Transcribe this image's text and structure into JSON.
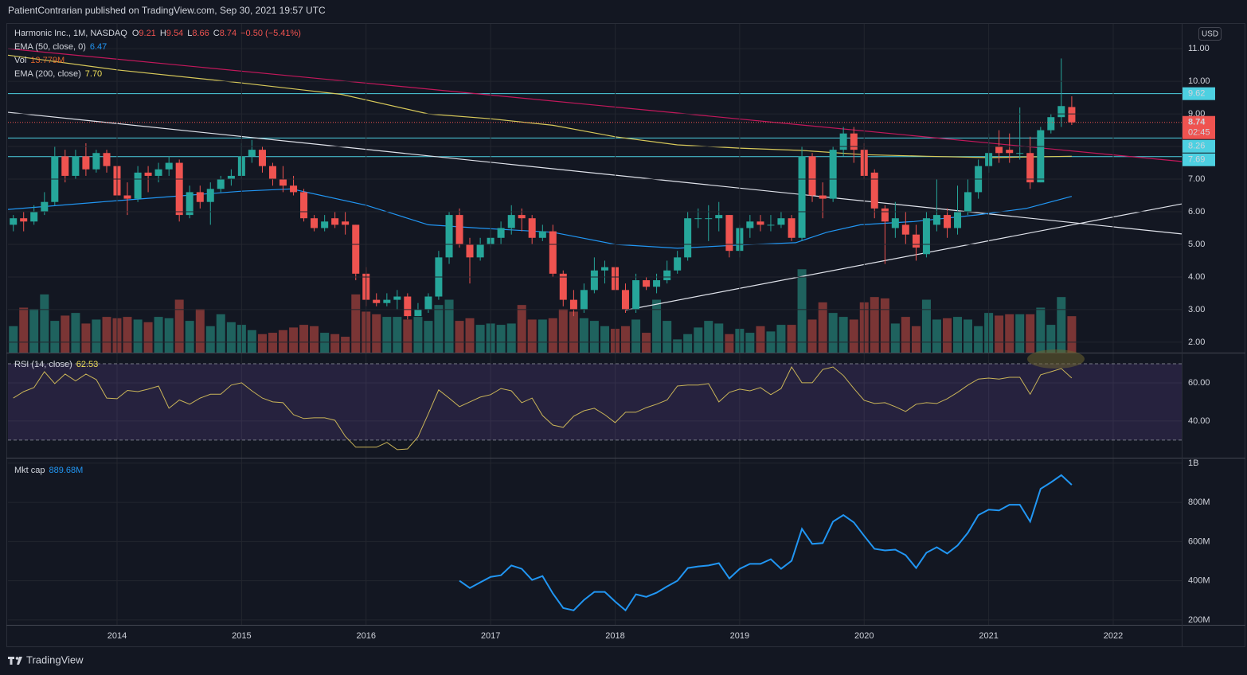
{
  "header": {
    "publisher": "PatientContrarian published on TradingView.com, Sep 30, 2021 19:57 UTC"
  },
  "footer": {
    "brand": "TradingView"
  },
  "chart_data": {
    "type": "candlestick",
    "title": "Harmonic Inc., 1M, NASDAQ",
    "legend_ohlc": {
      "o": "O",
      "o_value": "9.21",
      "h": "H",
      "h_value": "9.54",
      "l": "L",
      "l_value": "8.66",
      "c": "C",
      "c_value": "8.74",
      "change": "−0.50 (−5.41%)"
    },
    "currency": "USD",
    "countdown": "02:45",
    "up_color": "#26a69a",
    "down_color": "#ef5350",
    "x": [
      2013.167,
      2013.25,
      2013.333,
      2013.417,
      2013.5,
      2013.583,
      2013.667,
      2013.75,
      2013.833,
      2013.917,
      2014,
      2014.083,
      2014.167,
      2014.25,
      2014.333,
      2014.417,
      2014.5,
      2014.583,
      2014.667,
      2014.75,
      2014.833,
      2014.917,
      2015,
      2015.083,
      2015.167,
      2015.25,
      2015.333,
      2015.417,
      2015.5,
      2015.583,
      2015.667,
      2015.75,
      2015.833,
      2015.917,
      2016,
      2016.083,
      2016.167,
      2016.25,
      2016.333,
      2016.417,
      2016.5,
      2016.583,
      2016.667,
      2016.75,
      2016.833,
      2016.917,
      2017,
      2017.083,
      2017.167,
      2017.25,
      2017.333,
      2017.417,
      2017.5,
      2017.583,
      2017.667,
      2017.75,
      2017.833,
      2017.917,
      2018,
      2018.083,
      2018.167,
      2018.25,
      2018.333,
      2018.417,
      2018.5,
      2018.583,
      2018.667,
      2018.75,
      2018.833,
      2018.917,
      2019,
      2019.083,
      2019.167,
      2019.25,
      2019.333,
      2019.417,
      2019.5,
      2019.583,
      2019.667,
      2019.75,
      2019.833,
      2019.917,
      2020,
      2020.083,
      2020.167,
      2020.25,
      2020.333,
      2020.417,
      2020.5,
      2020.583,
      2020.667,
      2020.75,
      2020.833,
      2020.917,
      2021,
      2021.083,
      2021.167,
      2021.25,
      2021.333,
      2021.417,
      2021.5,
      2021.583,
      2021.667
    ],
    "open": [
      5.6,
      5.8,
      5.7,
      6.0,
      6.3,
      7.7,
      7.1,
      7.7,
      7.3,
      7.8,
      7.4,
      6.5,
      6.4,
      7.2,
      7.1,
      7.3,
      7.5,
      5.9,
      6.6,
      6.3,
      6.7,
      7.0,
      7.1,
      7.7,
      7.9,
      7.4,
      7.0,
      6.8,
      6.6,
      5.8,
      5.5,
      5.8,
      5.7,
      5.6,
      4.1,
      3.3,
      3.2,
      3.3,
      3.4,
      2.8,
      3.0,
      3.4,
      4.6,
      5.9,
      5.0,
      4.6,
      5.0,
      5.2,
      5.5,
      5.9,
      5.8,
      5.2,
      5.4,
      4.1,
      3.3,
      3.0,
      3.6,
      4.2,
      4.3,
      3.6,
      3.0,
      3.9,
      3.7,
      3.9,
      4.2,
      4.6,
      5.8,
      5.8,
      5.8,
      5.9,
      4.8,
      5.5,
      5.7,
      5.6,
      5.6,
      5.8,
      5.2,
      7.7,
      6.5,
      6.4,
      7.9,
      8.4,
      7.9,
      7.2,
      6.1,
      5.5,
      5.6,
      5.3,
      4.7,
      5.6,
      5.9,
      5.5,
      6.0,
      6.6,
      7.4,
      8.0,
      7.9,
      7.8,
      7.8,
      6.9,
      8.5,
      8.9,
      9.21
    ],
    "high": [
      5.9,
      6.0,
      6.2,
      6.6,
      8.0,
      7.9,
      7.9,
      8.1,
      7.9,
      7.9,
      7.6,
      6.9,
      7.4,
      7.4,
      7.5,
      7.7,
      7.6,
      6.8,
      6.8,
      6.9,
      7.1,
      7.3,
      8.1,
      8.2,
      8.0,
      7.5,
      7.4,
      7.1,
      6.7,
      5.9,
      5.9,
      6.0,
      6.0,
      5.6,
      4.3,
      3.5,
      3.5,
      3.6,
      3.5,
      3.2,
      3.5,
      4.8,
      6.0,
      6.1,
      5.2,
      5.2,
      5.5,
      5.7,
      6.2,
      6.1,
      5.9,
      5.6,
      5.6,
      4.2,
      3.6,
      3.8,
      4.6,
      4.5,
      4.5,
      3.8,
      4.1,
      4.0,
      4.1,
      4.5,
      4.8,
      6.0,
      6.1,
      6.2,
      6.3,
      5.9,
      5.6,
      5.9,
      5.9,
      5.9,
      6.0,
      5.9,
      8.0,
      7.8,
      6.9,
      8.0,
      8.6,
      8.6,
      8.1,
      7.3,
      6.2,
      6.3,
      6.0,
      5.6,
      6.0,
      7.0,
      6.1,
      6.8,
      7.0,
      7.6,
      8.4,
      8.5,
      8.4,
      9.2,
      8.3,
      8.6,
      9.0,
      10.7,
      9.54
    ],
    "low": [
      5.4,
      5.4,
      5.6,
      5.9,
      6.2,
      6.9,
      7.0,
      7.1,
      7.2,
      7.2,
      6.3,
      5.9,
      6.3,
      6.6,
      6.9,
      7.1,
      5.7,
      5.8,
      6.1,
      5.6,
      6.6,
      6.8,
      7.0,
      7.5,
      7.2,
      6.8,
      6.6,
      6.5,
      5.7,
      5.4,
      5.4,
      5.5,
      5.3,
      3.9,
      3.1,
      3.1,
      3.1,
      3.0,
      2.7,
      2.8,
      2.9,
      3.3,
      4.4,
      4.9,
      3.8,
      4.5,
      4.9,
      5.0,
      5.3,
      5.4,
      5.0,
      5.1,
      4.0,
      3.1,
      2.8,
      2.9,
      3.5,
      3.8,
      3.4,
      2.9,
      2.9,
      3.6,
      3.5,
      3.8,
      4.1,
      4.5,
      5.5,
      5.1,
      5.4,
      4.6,
      4.6,
      5.2,
      5.4,
      5.4,
      5.5,
      5.1,
      5.1,
      6.3,
      5.8,
      6.3,
      7.7,
      7.5,
      7.0,
      5.8,
      4.4,
      5.2,
      5.0,
      4.5,
      4.6,
      5.4,
      5.2,
      5.3,
      5.9,
      6.4,
      7.2,
      7.5,
      7.5,
      7.6,
      6.7,
      6.9,
      8.4,
      8.6,
      8.66
    ],
    "close": [
      5.8,
      5.7,
      6.0,
      6.3,
      7.7,
      7.1,
      7.7,
      7.3,
      7.8,
      7.4,
      6.5,
      6.4,
      7.2,
      7.1,
      7.3,
      7.5,
      5.9,
      6.6,
      6.3,
      6.7,
      7.0,
      7.1,
      7.7,
      7.9,
      7.4,
      7.0,
      6.8,
      6.6,
      5.8,
      5.5,
      5.7,
      5.6,
      5.6,
      4.1,
      3.3,
      3.2,
      3.3,
      3.4,
      2.8,
      3.0,
      3.4,
      4.6,
      5.9,
      5.0,
      4.6,
      5.0,
      5.2,
      5.5,
      5.9,
      5.8,
      5.2,
      5.4,
      4.1,
      3.3,
      3.0,
      3.6,
      4.2,
      4.3,
      3.6,
      3.0,
      3.9,
      3.7,
      3.9,
      4.2,
      4.6,
      5.8,
      5.8,
      5.8,
      5.9,
      4.8,
      5.5,
      5.7,
      5.6,
      5.6,
      5.8,
      5.2,
      7.7,
      6.5,
      6.4,
      7.9,
      8.4,
      7.9,
      7.1,
      6.1,
      5.7,
      5.8,
      5.3,
      4.9,
      5.8,
      5.9,
      5.5,
      6.0,
      6.6,
      7.4,
      7.8,
      7.8,
      7.8,
      7.8,
      6.9,
      8.5,
      8.9,
      9.24,
      8.74
    ],
    "xlim": [
      2013.124,
      2022.55
    ],
    "xticks": [
      2014,
      2015,
      2016,
      2017,
      2018,
      2019,
      2020,
      2021,
      2022
    ],
    "ylim": [
      1.68,
      11.76
    ],
    "yticks": [
      {
        "value": 2,
        "label": "2.00"
      },
      {
        "value": 3,
        "label": "3.00"
      },
      {
        "value": 4,
        "label": "4.00"
      },
      {
        "value": 5,
        "label": "5.00"
      },
      {
        "value": 6,
        "label": "6.00"
      },
      {
        "value": 7,
        "label": "7.00"
      },
      {
        "value": 8,
        "label": "8.00"
      },
      {
        "value": 9,
        "label": "9.00"
      },
      {
        "value": 10,
        "label": "10.00"
      },
      {
        "value": 11,
        "label": "11.00"
      }
    ],
    "grid": true,
    "hlines": [
      9.62,
      8.26,
      7.69
    ],
    "hline_color": "#4dd0e1",
    "volume": {
      "name": "Vol",
      "up_color": "#1f625e",
      "down_color": "#7a3535",
      "ylim": [
        0,
        40
      ],
      "last_label": "13.779M",
      "values": [
        10,
        17,
        16.5,
        22,
        12,
        14,
        15,
        11,
        12.5,
        13.5,
        13,
        13.5,
        12.5,
        11.5,
        13.5,
        13,
        20,
        12,
        16.5,
        10,
        14.5,
        11.5,
        10.5,
        8.5,
        7,
        7.5,
        8.5,
        9.5,
        10.5,
        10,
        7.5,
        7,
        6,
        22,
        15.5,
        14.5,
        13.5,
        13.5,
        12.5,
        13.5,
        12,
        18,
        20,
        12,
        13,
        10.5,
        11,
        10.5,
        11,
        18,
        12.5,
        12.5,
        13,
        16.5,
        15.5,
        13,
        12,
        10,
        9,
        10,
        12.5,
        7.5,
        20,
        12,
        5,
        7,
        9.5,
        12,
        11,
        7,
        9,
        7.5,
        10,
        8,
        10.5,
        10.5,
        31.5,
        12.5,
        19,
        15,
        13.5,
        12.5,
        19,
        21,
        20.5,
        11,
        13.5,
        10,
        20,
        12.5,
        13,
        13.5,
        12.5,
        10,
        15,
        14,
        14.5,
        14.5,
        14.5,
        17,
        10.5,
        21,
        13.779
      ]
    },
    "series": [
      {
        "name": "EMA (50, close, 0)",
        "color": "#2196f3",
        "last_label": "6.47",
        "x": [
          2013.124,
          2014,
          2015,
          2015.4,
          2016,
          2016.25,
          2016.5,
          2016.9,
          2017.5,
          2018,
          2018.5,
          2019,
          2019.45,
          2019.7,
          2019.97,
          2020.4,
          2020.9,
          2021.3,
          2021.667
        ],
        "values": [
          6.07,
          6.34,
          6.63,
          6.7,
          6.2,
          5.9,
          5.6,
          5.5,
          5.37,
          5.0,
          4.88,
          4.98,
          5.05,
          5.37,
          5.6,
          5.7,
          5.9,
          6.1,
          6.47
        ]
      },
      {
        "name": "EMA (200, close)",
        "color": "#d8c95a",
        "last_label": "7.70",
        "x": [
          2013.124,
          2014,
          2015,
          2015.8,
          2016.5,
          2017,
          2017.5,
          2018,
          2018.5,
          2019,
          2019.5,
          2020,
          2020.5,
          2021,
          2021.667
        ],
        "values": [
          10.8,
          10.35,
          9.95,
          9.6,
          9.0,
          8.85,
          8.65,
          8.3,
          8.05,
          7.95,
          7.88,
          7.75,
          7.7,
          7.66,
          7.7
        ]
      }
    ],
    "trendlines": [
      {
        "color": "#c2185b",
        "x": [
          2013.124,
          2022.55
        ],
        "y": [
          11.0,
          7.54
        ]
      },
      {
        "color": "#e0e3eb",
        "x": [
          2013.124,
          2022.55
        ],
        "y": [
          9.05,
          5.32
        ]
      },
      {
        "color": "#e0e3eb",
        "x": [
          2018.08,
          2022.55
        ],
        "y": [
          2.98,
          6.24
        ]
      }
    ],
    "rsi": {
      "name": "RSI (14, close)",
      "color": "#c9b458",
      "last_label": "62.53",
      "ylim": [
        20.8,
        75.4
      ],
      "yticks": [
        {
          "value": 60,
          "label": "60.00"
        },
        {
          "value": 40,
          "label": "40.00"
        }
      ],
      "bands": [
        70,
        30
      ],
      "values": [
        52,
        55.4,
        57.5,
        65.8,
        59.6,
        64.6,
        61,
        64.6,
        61.7,
        52,
        51.7,
        56,
        55.4,
        56.7,
        58.3,
        46.7,
        51,
        48.8,
        52,
        54,
        54,
        58.8,
        60,
        55.8,
        52,
        50,
        49.6,
        43.3,
        41.3,
        41.7,
        41.7,
        40.4,
        32,
        26.3,
        26.3,
        26.3,
        28.8,
        25,
        25.4,
        31.7,
        43.8,
        56.3,
        52,
        47.5,
        50,
        52.5,
        53.8,
        57,
        55.8,
        49.6,
        52,
        42.9,
        37.9,
        36.7,
        42.5,
        45.4,
        46.7,
        43.3,
        39.2,
        44.6,
        44.6,
        47,
        48.8,
        51,
        58.3,
        58.8,
        58.8,
        59.6,
        50,
        55,
        56.7,
        55.8,
        57.5,
        53.8,
        57,
        68.3,
        60,
        60,
        67,
        68.3,
        63.8,
        57,
        50.8,
        49.2,
        49.6,
        47.5,
        45,
        48.8,
        49.6,
        49.2,
        51.7,
        55,
        58.8,
        62,
        62.5,
        62,
        62.9,
        62.9,
        54,
        64.2,
        65.8,
        67.5,
        62.53
      ]
    },
    "mcap": {
      "name": "Mkt cap",
      "color": "#2196f3",
      "last_label": "889.68M",
      "ylim": [
        175,
        1024
      ],
      "yticks": [
        {
          "value": 1000,
          "label": "1B"
        },
        {
          "value": 800,
          "label": "800M"
        },
        {
          "value": 600,
          "label": "600M"
        },
        {
          "value": 400,
          "label": "400M"
        },
        {
          "value": 200,
          "label": "200M"
        }
      ],
      "values": [
        null,
        null,
        null,
        null,
        null,
        null,
        null,
        null,
        null,
        null,
        null,
        null,
        null,
        null,
        null,
        null,
        null,
        null,
        null,
        null,
        null,
        null,
        null,
        null,
        null,
        null,
        null,
        null,
        null,
        null,
        null,
        null,
        null,
        null,
        null,
        null,
        null,
        null,
        null,
        null,
        null,
        null,
        null,
        400,
        363,
        392,
        420,
        428,
        478,
        461,
        404,
        424,
        335,
        261,
        249,
        302,
        343,
        343,
        294,
        249,
        331,
        318,
        339,
        371,
        400,
        465,
        473,
        478,
        490,
        412,
        461,
        486,
        486,
        510,
        461,
        502,
        665,
        588,
        592,
        702,
        735,
        698,
        629,
        563,
        555,
        559,
        531,
        465,
        543,
        571,
        539,
        580,
        645,
        735,
        763,
        759,
        788,
        788,
        702,
        869,
        902,
        939,
        889.68
      ]
    }
  }
}
